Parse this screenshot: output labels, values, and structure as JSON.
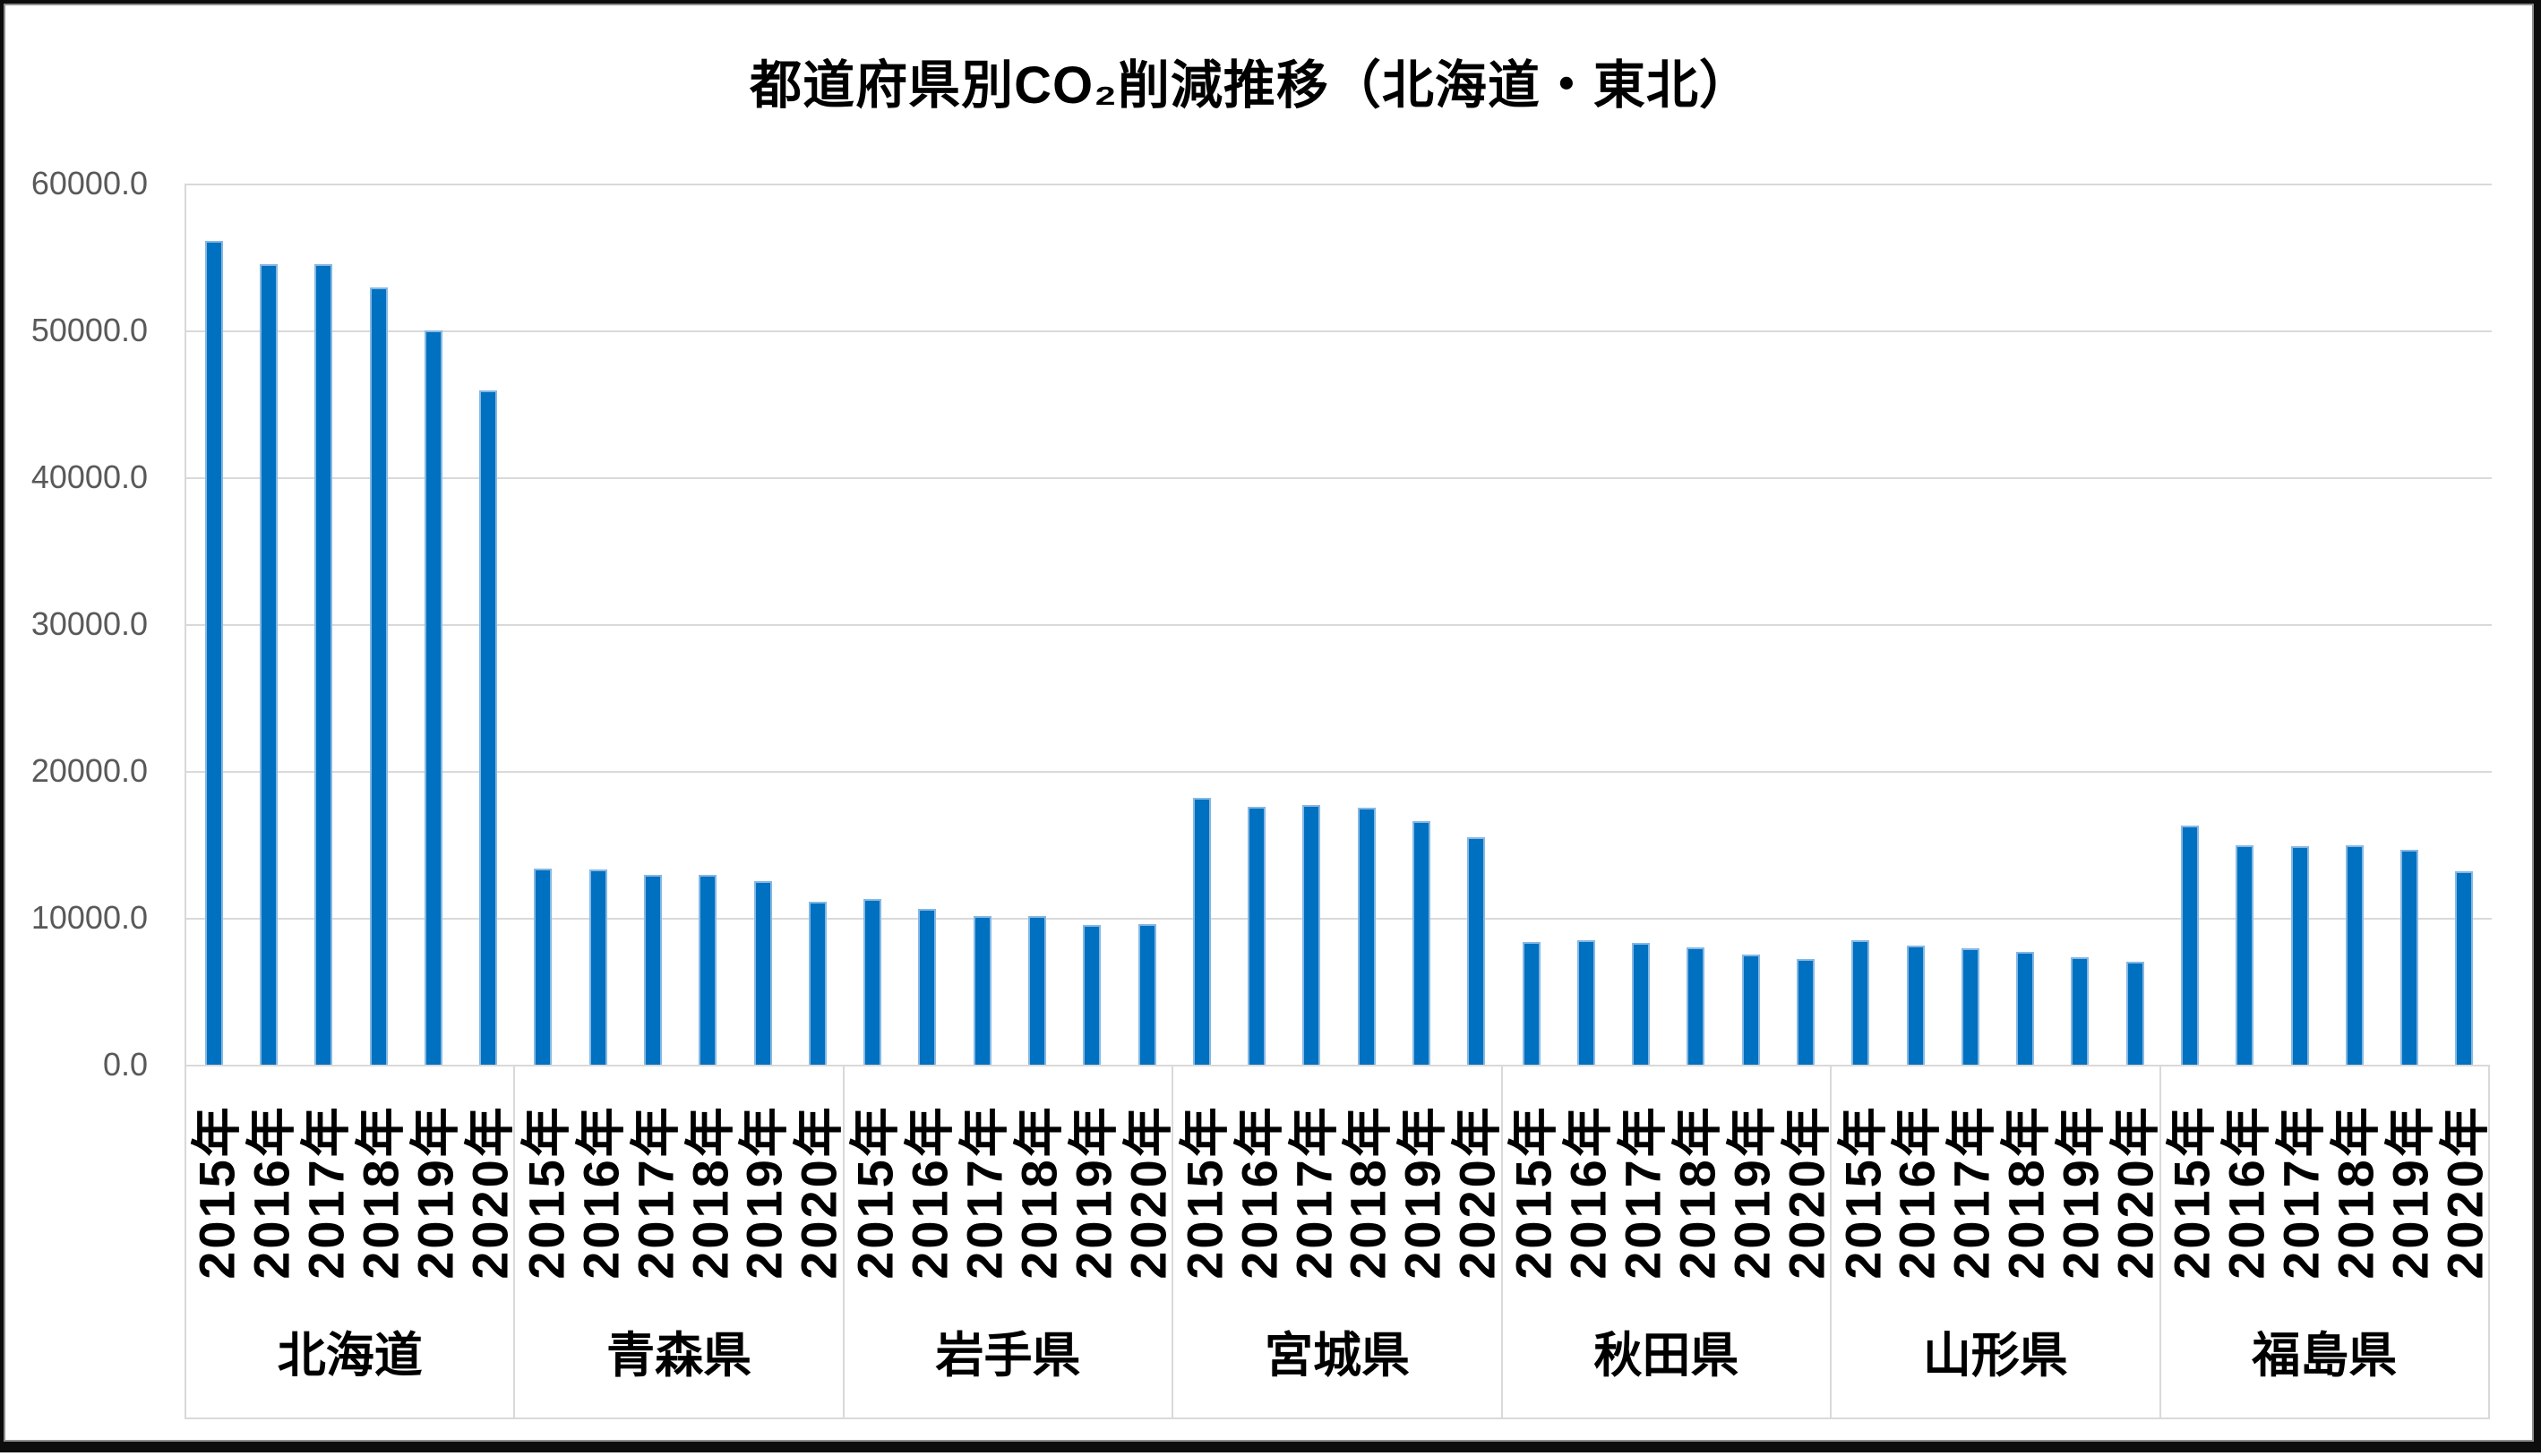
{
  "chart_data": {
    "type": "bar",
    "title": "都道府県別CO₂削減推移（北海道・東北）",
    "legend": "none",
    "grid": true,
    "y_axis": {
      "min": 0,
      "max": 60000,
      "step": 10000,
      "tick_labels": [
        "60000.0",
        "50000.0",
        "40000.0",
        "30000.0",
        "20000.0",
        "10000.0",
        "0.0"
      ]
    },
    "x_axis": {
      "years": [
        "2015年",
        "2016年",
        "2017年",
        "2018年",
        "2019年",
        "2020年"
      ]
    },
    "groups": [
      {
        "label": "北海道",
        "values": [
          56100,
          54500,
          54500,
          52900,
          50000,
          45900
        ]
      },
      {
        "label": "青森県",
        "values": [
          13350,
          13300,
          12950,
          12950,
          12500,
          11100
        ]
      },
      {
        "label": "岩手県",
        "values": [
          11300,
          10600,
          10100,
          10100,
          9500,
          9600
        ]
      },
      {
        "label": "宮城県",
        "values": [
          18200,
          17550,
          17700,
          17500,
          16600,
          15500
        ]
      },
      {
        "label": "秋田県",
        "values": [
          8350,
          8500,
          8300,
          8000,
          7500,
          7200
        ]
      },
      {
        "label": "山形県",
        "values": [
          8450,
          8100,
          7900,
          7700,
          7300,
          7000
        ]
      },
      {
        "label": "福島県",
        "values": [
          16300,
          14950,
          14900,
          14950,
          14650,
          13200
        ]
      }
    ],
    "colors": {
      "bar_fill": "#0070C0",
      "bar_edge": "#85B8E4",
      "gridline": "#D9D9D9",
      "axis_tick_text": "#595959",
      "title_text": "#000000"
    }
  }
}
